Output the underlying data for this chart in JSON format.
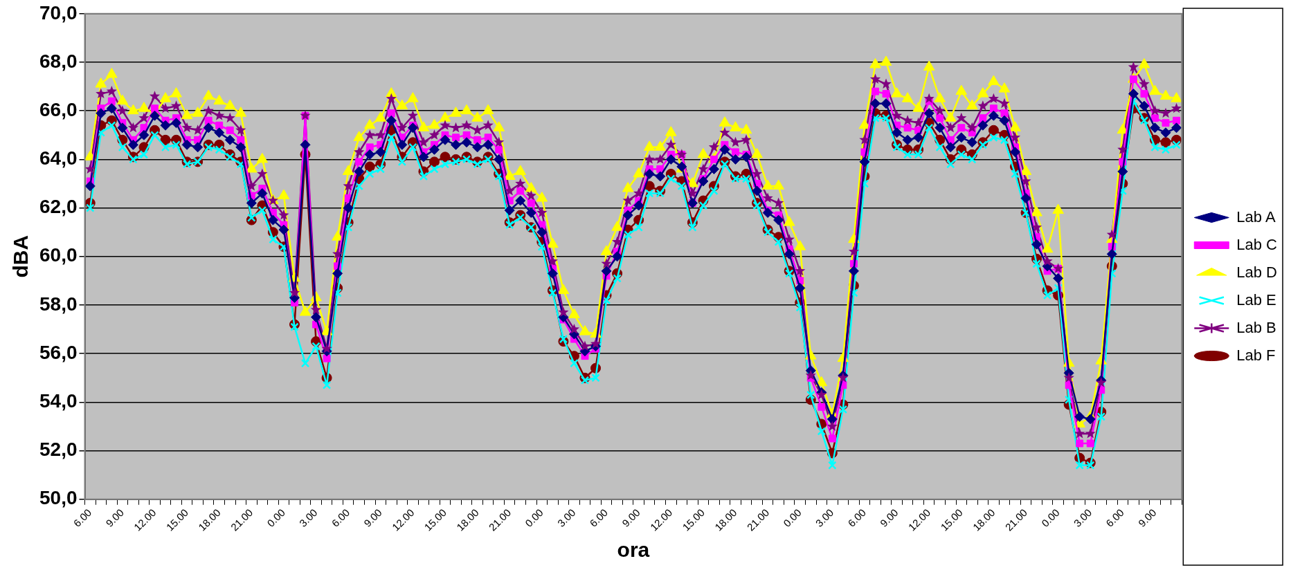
{
  "chart_data": {
    "type": "line",
    "xlabel": "ora",
    "ylabel": "dBA",
    "categories": [
      "6.00",
      null,
      null,
      "9.00",
      null,
      null,
      "12.00",
      null,
      null,
      "15.00",
      null,
      null,
      "18.00",
      null,
      null,
      "21.00",
      null,
      null,
      "0.00",
      null,
      null,
      "3.00",
      null,
      null,
      "6.00",
      null,
      null,
      "9.00",
      null,
      null,
      "12.00",
      null,
      null,
      "15.00",
      null,
      null,
      "18.00",
      null,
      null,
      "21.00",
      null,
      null,
      "0.00",
      null,
      null,
      "3.00",
      null,
      null,
      "6.00",
      null,
      null,
      "9.00",
      null,
      null,
      "12.00",
      null,
      null,
      "15.00",
      null,
      null,
      "18.00",
      null,
      null,
      "21.00",
      null,
      null,
      "0.00",
      null,
      null,
      "3.00",
      null,
      null,
      "6.00",
      null,
      null,
      "9.00",
      null,
      null,
      "12.00",
      null,
      null,
      "15.00",
      null,
      null,
      "18.00",
      null,
      null,
      "21.00",
      null,
      null,
      "0.00",
      null,
      null,
      "3.00",
      null,
      null,
      "6.00",
      null,
      null,
      "9.00",
      null,
      null
    ],
    "ylim": [
      50,
      70
    ],
    "yticks": [
      {
        "value": 50,
        "label": "50,0"
      },
      {
        "value": 52,
        "label": "52,0"
      },
      {
        "value": 54,
        "label": "54,0"
      },
      {
        "value": 56,
        "label": "56,0"
      },
      {
        "value": 58,
        "label": "58,0"
      },
      {
        "value": 60,
        "label": "60,0"
      },
      {
        "value": 62,
        "label": "62,0"
      },
      {
        "value": 64,
        "label": "64,0"
      },
      {
        "value": 66,
        "label": "66,0"
      },
      {
        "value": 68,
        "label": "68,0"
      },
      {
        "value": 70,
        "label": "70,0"
      }
    ],
    "grid": "y",
    "legend": "right",
    "series": [
      {
        "name": "Lab A",
        "color": "#000080",
        "marker": "diamond",
        "values": [
          62.9,
          65.9,
          66.1,
          65.3,
          64.6,
          65.0,
          65.8,
          65.4,
          65.5,
          64.6,
          64.5,
          65.3,
          65.1,
          64.8,
          64.5,
          62.2,
          62.6,
          61.5,
          61.1,
          58.3,
          64.6,
          57.5,
          56.1,
          59.3,
          62.0,
          63.5,
          64.2,
          64.3,
          65.6,
          64.6,
          65.3,
          64.1,
          64.4,
          64.8,
          64.6,
          64.7,
          64.5,
          64.6,
          64.0,
          61.9,
          62.3,
          61.8,
          61.0,
          59.3,
          57.5,
          56.8,
          56.1,
          56.3,
          59.4,
          60.0,
          61.7,
          62.1,
          63.4,
          63.3,
          64.0,
          63.7,
          62.2,
          63.1,
          63.6,
          64.4,
          64.0,
          64.1,
          62.7,
          61.8,
          61.5,
          60.1,
          58.7,
          55.3,
          54.4,
          53.3,
          55.1,
          59.4,
          63.9,
          66.3,
          66.3,
          65.1,
          64.8,
          64.9,
          65.9,
          65.3,
          64.5,
          64.9,
          64.7,
          65.4,
          65.8,
          65.6,
          64.3,
          62.4,
          60.5,
          59.6,
          59.1,
          55.2,
          53.4,
          53.3,
          54.9,
          60.1,
          63.5,
          66.7,
          66.2,
          65.3,
          65.1,
          65.3
        ]
      },
      {
        "name": "Lab C",
        "color": "#ff00ff",
        "marker": "square",
        "values": [
          63.1,
          66.1,
          66.4,
          65.5,
          64.8,
          65.3,
          66.1,
          65.6,
          65.7,
          64.8,
          64.8,
          65.6,
          65.4,
          65.2,
          64.8,
          62.5,
          62.8,
          61.8,
          61.3,
          58.1,
          65.8,
          57.2,
          55.8,
          59.6,
          62.4,
          63.9,
          64.5,
          64.6,
          65.9,
          64.9,
          65.4,
          64.3,
          64.6,
          65.0,
          64.9,
          65.0,
          64.8,
          64.9,
          64.4,
          62.3,
          62.7,
          62.2,
          61.3,
          59.5,
          57.4,
          56.6,
          55.9,
          56.2,
          59.2,
          60.2,
          61.9,
          62.3,
          63.6,
          63.6,
          64.2,
          64.2,
          62.2,
          63.2,
          64.0,
          64.6,
          64.3,
          64.2,
          63.0,
          61.9,
          61.7,
          60.3,
          59.0,
          55.0,
          53.8,
          52.5,
          54.7,
          59.7,
          64.3,
          66.8,
          66.7,
          65.4,
          65.3,
          65.2,
          66.4,
          65.7,
          64.8,
          65.3,
          65.1,
          65.7,
          66.1,
          65.9,
          64.5,
          62.6,
          60.8,
          59.4,
          59.5,
          54.7,
          52.3,
          52.3,
          54.5,
          60.4,
          63.9,
          67.3,
          66.7,
          65.7,
          65.5,
          65.6
        ]
      },
      {
        "name": "Lab D",
        "color": "#ffff00",
        "marker": "triangle",
        "values": [
          64.1,
          67.1,
          67.5,
          66.4,
          66.0,
          66.1,
          65.9,
          66.5,
          66.7,
          65.8,
          65.9,
          66.6,
          66.4,
          66.2,
          65.9,
          63.6,
          64.0,
          62.3,
          62.5,
          59.1,
          57.7,
          58.3,
          56.9,
          60.8,
          63.5,
          64.9,
          65.4,
          65.7,
          66.7,
          66.2,
          66.5,
          65.3,
          65.4,
          65.7,
          65.9,
          66.0,
          65.7,
          66.0,
          65.3,
          63.3,
          63.5,
          62.8,
          62.4,
          60.5,
          58.6,
          57.6,
          56.9,
          56.8,
          60.2,
          61.2,
          62.8,
          63.4,
          64.5,
          64.5,
          65.1,
          63.6,
          63.0,
          64.2,
          64.0,
          65.5,
          65.3,
          65.2,
          64.2,
          62.9,
          62.9,
          61.4,
          60.4,
          55.9,
          54.8,
          53.5,
          55.8,
          60.7,
          65.4,
          67.9,
          68.0,
          66.7,
          66.5,
          66.1,
          67.8,
          66.5,
          65.7,
          66.8,
          66.2,
          66.7,
          67.2,
          66.9,
          65.3,
          63.5,
          61.8,
          60.3,
          61.9,
          55.6,
          53.1,
          53.4,
          55.7,
          60.7,
          65.2,
          67.3,
          67.9,
          66.8,
          66.6,
          66.5
        ]
      },
      {
        "name": "Lab E",
        "color": "#00ffff",
        "marker": "cross",
        "values": [
          62.0,
          65.1,
          65.4,
          64.5,
          64.0,
          64.2,
          65.0,
          64.5,
          64.6,
          63.8,
          63.9,
          64.5,
          64.4,
          64.1,
          63.8,
          61.6,
          61.9,
          60.7,
          60.4,
          57.1,
          55.6,
          56.3,
          54.7,
          58.5,
          61.2,
          62.9,
          63.4,
          63.6,
          64.9,
          63.9,
          64.5,
          63.3,
          63.6,
          63.8,
          63.9,
          64.0,
          63.8,
          64.0,
          63.3,
          61.3,
          61.6,
          61.2,
          60.4,
          58.5,
          56.6,
          55.6,
          54.9,
          55.0,
          58.2,
          59.1,
          60.9,
          61.2,
          62.6,
          62.6,
          63.2,
          62.9,
          61.2,
          62.1,
          62.7,
          63.8,
          63.2,
          63.2,
          62.1,
          61.0,
          60.6,
          59.3,
          57.9,
          54.3,
          52.8,
          51.4,
          53.7,
          58.5,
          63.0,
          65.7,
          65.7,
          64.5,
          64.2,
          64.2,
          65.3,
          64.5,
          63.8,
          64.2,
          64.0,
          64.6,
          64.9,
          64.8,
          63.4,
          61.8,
          59.7,
          58.4,
          58.7,
          54.1,
          51.4,
          51.4,
          53.4,
          59.3,
          62.7,
          66.4,
          65.6,
          64.5,
          64.4,
          64.6
        ]
      },
      {
        "name": "Lab B",
        "color": "#800080",
        "marker": "star",
        "values": [
          63.6,
          66.7,
          66.8,
          66.0,
          65.3,
          65.7,
          66.6,
          66.1,
          66.2,
          65.3,
          65.2,
          66.0,
          65.8,
          65.7,
          65.2,
          62.9,
          63.4,
          62.3,
          61.7,
          58.5,
          65.8,
          57.8,
          56.2,
          60.1,
          62.9,
          64.3,
          65.0,
          65.0,
          66.5,
          65.3,
          65.8,
          64.7,
          65.0,
          65.4,
          65.3,
          65.4,
          65.2,
          65.4,
          64.7,
          62.7,
          63.0,
          62.5,
          61.8,
          59.8,
          57.7,
          57.0,
          56.3,
          56.4,
          59.7,
          60.6,
          62.3,
          62.6,
          64.0,
          64.0,
          64.6,
          64.2,
          62.6,
          63.6,
          64.5,
          65.1,
          64.7,
          64.8,
          63.4,
          62.4,
          62.2,
          60.7,
          59.4,
          55.1,
          54.3,
          53.0,
          55.0,
          60.2,
          64.8,
          67.3,
          67.1,
          65.8,
          65.6,
          65.5,
          66.5,
          66.0,
          65.3,
          65.7,
          65.3,
          66.2,
          66.5,
          66.3,
          64.9,
          63.1,
          61.2,
          59.8,
          59.5,
          55.0,
          52.7,
          52.7,
          54.8,
          60.9,
          64.4,
          67.8,
          67.1,
          66.0,
          65.9,
          66.1
        ]
      },
      {
        "name": "Lab F",
        "color": "#800000",
        "marker": "circle",
        "values": [
          62.2,
          65.4,
          65.6,
          64.8,
          64.1,
          64.5,
          65.2,
          64.8,
          64.8,
          63.9,
          63.9,
          64.6,
          64.6,
          64.2,
          63.9,
          61.5,
          62.1,
          61.0,
          60.4,
          57.2,
          64.2,
          56.5,
          55.0,
          58.7,
          61.4,
          63.2,
          63.7,
          63.8,
          65.2,
          64.1,
          64.7,
          63.5,
          63.9,
          64.1,
          64.0,
          64.1,
          63.9,
          64.1,
          63.4,
          61.4,
          61.7,
          61.2,
          60.6,
          58.6,
          56.5,
          55.9,
          55.0,
          55.4,
          58.4,
          59.3,
          61.1,
          61.5,
          62.9,
          62.7,
          63.4,
          63.1,
          61.4,
          62.3,
          62.9,
          63.9,
          63.3,
          63.4,
          62.2,
          61.1,
          60.8,
          59.4,
          58.1,
          54.1,
          53.1,
          51.9,
          53.9,
          58.8,
          63.3,
          65.9,
          65.8,
          64.6,
          64.4,
          64.4,
          65.5,
          64.8,
          64.0,
          64.4,
          64.2,
          64.7,
          65.2,
          65.0,
          63.7,
          61.8,
          59.9,
          58.6,
          58.4,
          53.9,
          51.7,
          51.5,
          53.6,
          59.6,
          63.0,
          66.1,
          65.7,
          64.8,
          64.7,
          64.8
        ]
      }
    ]
  }
}
